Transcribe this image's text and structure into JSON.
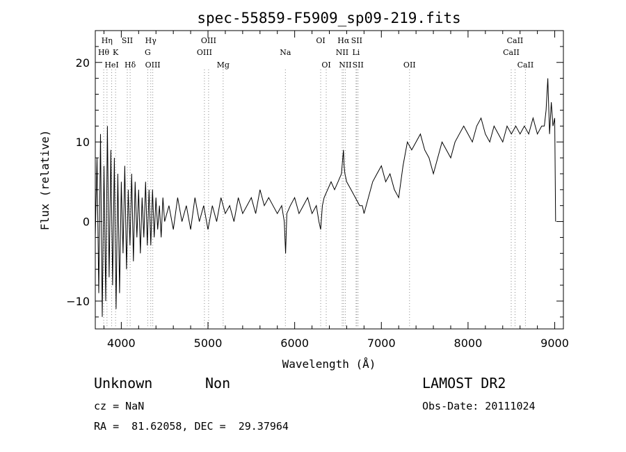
{
  "chart_data": {
    "type": "line",
    "title": "spec-55859-F5909_sp09-219.fits",
    "xlabel": "Wavelength (Å)",
    "ylabel": "Flux (relative)",
    "xlim": [
      3700,
      9100
    ],
    "ylim": [
      -13.5,
      24
    ],
    "xticks": [
      4000,
      5000,
      6000,
      7000,
      8000,
      9000
    ],
    "yticks": [
      -10,
      0,
      10,
      20
    ],
    "grid": false,
    "series": [
      {
        "x": [
          3700,
          3720,
          3740,
          3760,
          3780,
          3800,
          3820,
          3840,
          3860,
          3880,
          3900,
          3920,
          3940,
          3960,
          3980,
          4000,
          4020,
          4040,
          4060,
          4080,
          4100,
          4120,
          4140,
          4160,
          4180,
          4200,
          4220,
          4240,
          4260,
          4280,
          4300,
          4320,
          4340,
          4360,
          4380,
          4400,
          4420,
          4440,
          4460,
          4480,
          4500,
          4550,
          4600,
          4650,
          4700,
          4750,
          4800,
          4850,
          4900,
          4950,
          5000,
          5050,
          5100,
          5150,
          5200,
          5250,
          5300,
          5350,
          5400,
          5450,
          5500,
          5550,
          5600,
          5650,
          5700,
          5750,
          5800,
          5850,
          5880,
          5895,
          5910,
          5950,
          6000,
          6050,
          6100,
          6150,
          6200,
          6250,
          6280,
          6300,
          6320,
          6340,
          6380,
          6420,
          6460,
          6500,
          6540,
          6555,
          6563,
          6570,
          6580,
          6600,
          6650,
          6700,
          6750,
          6780,
          6800,
          6850,
          6900,
          6950,
          7000,
          7050,
          7100,
          7150,
          7200,
          7250,
          7300,
          7350,
          7400,
          7450,
          7500,
          7550,
          7600,
          7650,
          7700,
          7750,
          7800,
          7850,
          7900,
          7950,
          8000,
          8050,
          8100,
          8150,
          8200,
          8250,
          8300,
          8350,
          8400,
          8450,
          8500,
          8550,
          8600,
          8650,
          8700,
          8750,
          8800,
          8850,
          8880,
          8900,
          8920,
          8940,
          8960,
          8980,
          9000,
          9010
        ],
        "y": [
          -2,
          8,
          -9,
          11,
          -12,
          7,
          -10,
          12,
          -7,
          9,
          -8,
          8,
          -11,
          6,
          -9,
          5,
          -4,
          7,
          -6,
          4,
          -3,
          6,
          -5,
          5,
          -2,
          4,
          -4,
          3,
          -2,
          5,
          -3,
          4,
          -3,
          4,
          -2,
          3,
          -1,
          2,
          -2,
          3,
          0,
          2,
          -1,
          3,
          0,
          2,
          -1,
          3,
          0,
          2,
          -1,
          2,
          0,
          3,
          1,
          2,
          0,
          3,
          1,
          2,
          3,
          1,
          4,
          2,
          3,
          2,
          1,
          2,
          0,
          -4,
          1,
          2,
          3,
          1,
          2,
          3,
          1,
          2,
          0,
          -1,
          2,
          3,
          4,
          5,
          4,
          5,
          6,
          8,
          9,
          7,
          6,
          5,
          4,
          3,
          2,
          2,
          1,
          3,
          5,
          6,
          7,
          5,
          6,
          4,
          3,
          7,
          10,
          9,
          10,
          11,
          9,
          8,
          6,
          8,
          10,
          9,
          8,
          10,
          11,
          12,
          11,
          10,
          12,
          13,
          11,
          10,
          12,
          11,
          10,
          12,
          11,
          12,
          11,
          12,
          11,
          13,
          11,
          12,
          12,
          14,
          18,
          11,
          15,
          12,
          13,
          0
        ]
      }
    ],
    "spectral_lines": [
      {
        "name": "Hη",
        "wavelength": 3835,
        "row": 0
      },
      {
        "name": "Hθ",
        "wavelength": 3797,
        "row": 1
      },
      {
        "name": "K",
        "wavelength": 3934,
        "row": 1
      },
      {
        "name": "HeI",
        "wavelength": 3889,
        "row": 2
      },
      {
        "name": "SII",
        "wavelength": 4069,
        "row": 0
      },
      {
        "name": "Hδ",
        "wavelength": 4102,
        "row": 2
      },
      {
        "name": "Hγ",
        "wavelength": 4340,
        "row": 0
      },
      {
        "name": "G",
        "wavelength": 4305,
        "row": 1
      },
      {
        "name": "OIII",
        "wavelength": 4363,
        "row": 2
      },
      {
        "name": "OIII",
        "wavelength": 5007,
        "row": 0
      },
      {
        "name": "OIII",
        "wavelength": 4959,
        "row": 1
      },
      {
        "name": "Mg",
        "wavelength": 5175,
        "row": 2
      },
      {
        "name": "Na",
        "wavelength": 5893,
        "row": 1
      },
      {
        "name": "OI",
        "wavelength": 6300,
        "row": 0
      },
      {
        "name": "OI",
        "wavelength": 6364,
        "row": 2
      },
      {
        "name": "Hα",
        "wavelength": 6563,
        "row": 0
      },
      {
        "name": "SII",
        "wavelength": 6716,
        "row": 0
      },
      {
        "name": "NII",
        "wavelength": 6548,
        "row": 1
      },
      {
        "name": "Li",
        "wavelength": 6708,
        "row": 1
      },
      {
        "name": "NII",
        "wavelength": 6584,
        "row": 2
      },
      {
        "name": "SII",
        "wavelength": 6731,
        "row": 2
      },
      {
        "name": "OII",
        "wavelength": 7325,
        "row": 2
      },
      {
        "name": "CaII",
        "wavelength": 8542,
        "row": 0
      },
      {
        "name": "CaII",
        "wavelength": 8498,
        "row": 1
      },
      {
        "name": "CaII",
        "wavelength": 8662,
        "row": 2
      }
    ]
  },
  "info": {
    "object_class": "Unknown",
    "subclass": "Non",
    "survey": "LAMOST DR2",
    "cz": "cz = NaN",
    "obs_date": "Obs-Date: 20111024",
    "coords": "RA =  81.62058, DEC =  29.37964"
  }
}
